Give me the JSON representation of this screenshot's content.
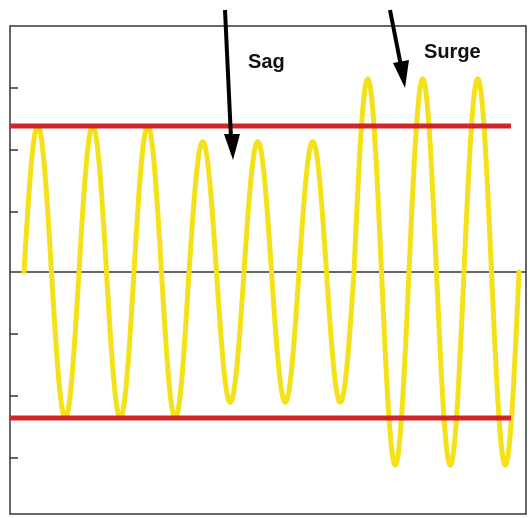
{
  "labels": {
    "sag": "Sag",
    "surge": "Surge"
  },
  "waveform": {
    "color": "#f4e11a",
    "cycles": [
      {
        "peak": 0.93
      },
      {
        "peak": 0.93
      },
      {
        "peak": 0.93
      },
      {
        "peak": 0.83
      },
      {
        "peak": 0.83
      },
      {
        "peak": 0.83
      },
      {
        "peak": 1.23
      },
      {
        "peak": 1.23
      },
      {
        "peak": 1.23
      }
    ]
  },
  "limits": {
    "color": "#d2252a",
    "upper": 0.93,
    "lower": -0.93
  },
  "colors": {
    "frame": "#333333",
    "axis": "#333333",
    "arrow": "#000000"
  }
}
